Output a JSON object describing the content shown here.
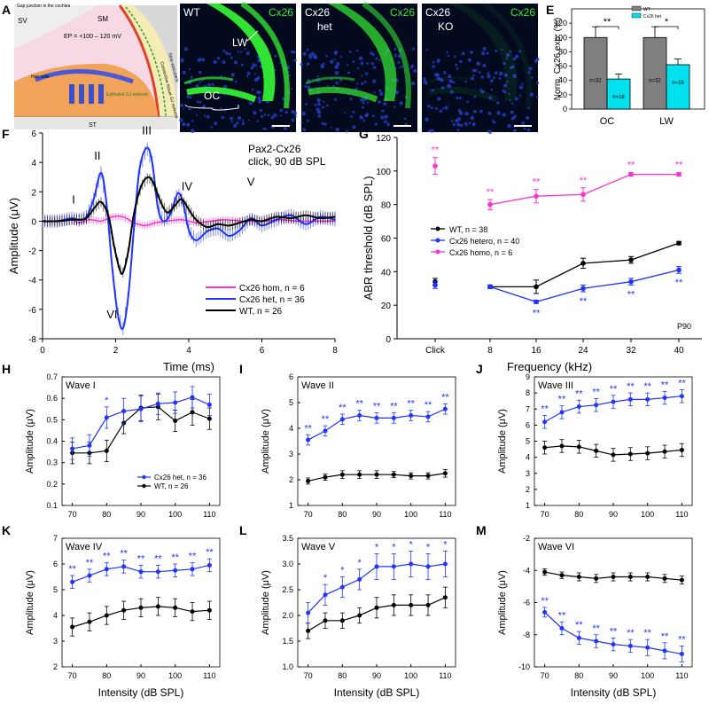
{
  "colors": {
    "blue": "#1f35ff",
    "black": "#000000",
    "magenta": "#ff33cc",
    "cyan": "#00e0ee",
    "grey": "#7f7f7f",
    "green": "#33ee33",
    "micro_bg": "#040a1e"
  },
  "panel_letters": [
    "A",
    "B",
    "C",
    "D",
    "E",
    "F",
    "G",
    "H",
    "I",
    "J",
    "K",
    "L",
    "M"
  ],
  "panelA": {
    "title": "Gap junction in the cochlea",
    "sv": "SV",
    "sm": "SM",
    "ep": "EP = +100 – 120 mV",
    "hair_cells": "Hair cells",
    "st": "ST",
    "stria": "Stria vascularis",
    "connective": "Connective tissue GJ network",
    "epithelial": "Epithelial GJ network"
  },
  "panelB": {
    "genotype": "WT",
    "stain": "Cx26",
    "lw": "LW",
    "oc": "OC"
  },
  "panelC": {
    "genotype": "Cx26",
    "genotype2": "het",
    "stain": "Cx26"
  },
  "panelD": {
    "genotype": "Cx26",
    "genotype2": "KO",
    "stain": "Cx26"
  },
  "panelE": {
    "chart_data": {
      "type": "bar",
      "ylabel": "Norm. Cx26 exp. (%)",
      "categories": [
        "OC",
        "LW"
      ],
      "series": [
        {
          "name": "WT",
          "values": [
            100,
            100
          ],
          "errors": [
            15,
            15
          ],
          "n_label": "n=32"
        },
        {
          "name": "Cx26 het",
          "values": [
            42,
            62
          ],
          "errors": [
            7,
            8
          ],
          "n_label": "n=18"
        }
      ],
      "ylim": [
        0,
        140
      ],
      "yticks": [
        0,
        20,
        40,
        60,
        80,
        100,
        120
      ],
      "significance": [
        "**",
        "*"
      ]
    }
  },
  "panelF": {
    "chart_data": {
      "type": "line",
      "title": "Pax2-Cx26",
      "subtitle": "click, 90 dB SPL",
      "xlabel": "Time (ms)",
      "ylabel": "Amplitude (μV)",
      "xlim": [
        0,
        8
      ],
      "ylim": [
        -8,
        6
      ],
      "xticks": [
        0,
        2,
        4,
        6,
        8
      ],
      "yticks": [
        -8,
        -6,
        -4,
        -2,
        0,
        2,
        4,
        6
      ],
      "wave_labels": [
        {
          "text": "I",
          "x": 0.85,
          "y": 1.2
        },
        {
          "text": "II",
          "x": 1.5,
          "y": 4.2
        },
        {
          "text": "III",
          "x": 2.85,
          "y": 5.9
        },
        {
          "text": "IV",
          "x": 3.95,
          "y": 2.1
        },
        {
          "text": "V",
          "x": 5.7,
          "y": 2.4
        },
        {
          "text": "VI",
          "x": 1.9,
          "y": -6.6
        }
      ],
      "legend": [
        "Cx26 hom, n = 6",
        "Cx26 het, n = 36",
        "WT, n = 26"
      ],
      "series": [
        {
          "name": "Cx26 het",
          "x": [
            0,
            0.4,
            0.8,
            1.0,
            1.2,
            1.4,
            1.6,
            1.75,
            1.9,
            2.05,
            2.2,
            2.35,
            2.5,
            2.65,
            2.85,
            3.0,
            3.15,
            3.3,
            3.5,
            3.7,
            3.85,
            4.0,
            4.2,
            4.5,
            4.8,
            5.1,
            5.4,
            5.7,
            6.0,
            6.4,
            6.8,
            7.2,
            7.6,
            8.0
          ],
          "y": [
            0,
            0,
            0.2,
            0.1,
            0.3,
            1.5,
            3.3,
            1.2,
            -3.0,
            -6.2,
            -7.3,
            -5.0,
            -0.5,
            3.5,
            5.0,
            4.0,
            1.0,
            0.0,
            0.5,
            1.9,
            1.2,
            -0.6,
            -1.3,
            -0.7,
            -0.5,
            -1.0,
            -0.6,
            0.2,
            -0.3,
            0.1,
            0.4,
            -0.2,
            0.3,
            0.1
          ]
        },
        {
          "name": "WT",
          "x": [
            0,
            0.4,
            0.8,
            1.0,
            1.2,
            1.45,
            1.6,
            1.8,
            1.95,
            2.1,
            2.2,
            2.35,
            2.5,
            2.7,
            2.9,
            3.05,
            3.2,
            3.4,
            3.6,
            3.8,
            4.0,
            4.2,
            4.5,
            4.8,
            5.1,
            5.4,
            5.7,
            6.0,
            6.4,
            6.8,
            7.2,
            7.6,
            8.0
          ],
          "y": [
            0,
            0,
            0.1,
            0.1,
            0.2,
            1.0,
            1.3,
            0.4,
            -1.6,
            -3.2,
            -3.5,
            -2.0,
            0.5,
            2.4,
            3.0,
            2.5,
            1.5,
            0.6,
            1.0,
            1.5,
            0.8,
            0.1,
            -0.4,
            -0.2,
            -0.3,
            -0.1,
            0.1,
            0.0,
            0.3,
            0.2,
            0.4,
            0.2,
            0.3
          ]
        },
        {
          "name": "Cx26 hom",
          "x": [
            0,
            0.5,
            0.8,
            1.0,
            1.3,
            1.6,
            1.9,
            2.2,
            2.5,
            2.8,
            3.1,
            3.4,
            3.8,
            4.2,
            4.6,
            5.0,
            5.5,
            6.0,
            6.5,
            7.0,
            7.5,
            8.0
          ],
          "y": [
            0,
            0,
            0.1,
            -0.1,
            0.1,
            0.0,
            0.3,
            0.3,
            -0.1,
            -0.3,
            -0.1,
            0.0,
            0.1,
            -0.1,
            0.0,
            0.1,
            0.0,
            0.0,
            0.1,
            0.0,
            0.0,
            0.0
          ]
        }
      ]
    }
  },
  "panelG": {
    "chart_data": {
      "type": "line",
      "xlabel": "Frequency (kHz)",
      "ylabel": "ABR threshold (dB SPL)",
      "categories": [
        "Click",
        "8",
        "16",
        "24",
        "32",
        "40"
      ],
      "ylim": [
        0,
        120
      ],
      "yticks": [
        0,
        20,
        40,
        60,
        80,
        100,
        120
      ],
      "legend": [
        "WT, n = 38",
        "Cx26 hetero, n = 40",
        "Cx26 homo, n = 6"
      ],
      "corner_label": "P90",
      "series": [
        {
          "name": "WT",
          "values": [
            34,
            31,
            31,
            45,
            47,
            57
          ],
          "errors": [
            2,
            1,
            4,
            3,
            2,
            1
          ]
        },
        {
          "name": "Cx26 hetero",
          "values": [
            32,
            31,
            22,
            30,
            34,
            41
          ],
          "errors": [
            2,
            1,
            1,
            2,
            2,
            2
          ],
          "sig": [
            "",
            "",
            "**",
            "**",
            "**",
            "**"
          ]
        },
        {
          "name": "Cx26 homo",
          "values": [
            103,
            80,
            85,
            86,
            98,
            98
          ],
          "errors": [
            5,
            3,
            4,
            4,
            1,
            1
          ],
          "sig": [
            "**",
            "**",
            "**",
            "**",
            "**",
            "**"
          ]
        }
      ]
    }
  },
  "waves": {
    "xlabel": "Intensity (dB SPL)",
    "ylabel": "Amplitude (μV)",
    "x": [
      70,
      75,
      80,
      85,
      90,
      95,
      100,
      105,
      110
    ],
    "xticks": [
      70,
      80,
      90,
      100,
      110
    ],
    "legend": [
      "Cx26 het, n = 36",
      "WT, n = 26"
    ],
    "panels": [
      {
        "letter": "H",
        "title": "Wave I",
        "ylim": [
          0.1,
          0.7
        ],
        "yticks": [
          0.1,
          0.2,
          0.3,
          0.4,
          0.5,
          0.6,
          0.7
        ],
        "het": [
          0.365,
          0.38,
          0.51,
          0.54,
          0.55,
          0.575,
          0.58,
          0.605,
          0.57
        ],
        "het_err": [
          0.05,
          0.05,
          0.05,
          0.06,
          0.06,
          0.05,
          0.05,
          0.05,
          0.05
        ],
        "wt": [
          0.345,
          0.345,
          0.355,
          0.485,
          0.555,
          0.56,
          0.495,
          0.535,
          0.505
        ],
        "wt_err": [
          0.05,
          0.05,
          0.05,
          0.05,
          0.06,
          0.06,
          0.05,
          0.06,
          0.05
        ],
        "sig": [
          "",
          "",
          "*",
          "",
          "",
          "",
          "",
          "",
          ""
        ]
      },
      {
        "letter": "I",
        "title": "Wave II",
        "ylim": [
          1,
          6
        ],
        "yticks": [
          1,
          2,
          3,
          4,
          5,
          6
        ],
        "het": [
          3.55,
          3.9,
          4.35,
          4.5,
          4.4,
          4.4,
          4.5,
          4.45,
          4.75
        ],
        "het_err": [
          0.2,
          0.2,
          0.2,
          0.2,
          0.2,
          0.2,
          0.2,
          0.2,
          0.2
        ],
        "wt": [
          1.95,
          2.1,
          2.2,
          2.2,
          2.2,
          2.2,
          2.15,
          2.15,
          2.25
        ],
        "wt_err": [
          0.12,
          0.12,
          0.15,
          0.15,
          0.15,
          0.12,
          0.12,
          0.12,
          0.15
        ],
        "sig": [
          "**",
          "**",
          "**",
          "**",
          "**",
          "**",
          "**",
          "**",
          "**"
        ]
      },
      {
        "letter": "J",
        "title": "Wave III",
        "ylim": [
          1,
          9
        ],
        "yticks": [
          1,
          2,
          3,
          4,
          5,
          6,
          7,
          8,
          9
        ],
        "het": [
          6.2,
          6.8,
          7.15,
          7.25,
          7.45,
          7.6,
          7.6,
          7.7,
          7.8
        ],
        "het_err": [
          0.4,
          0.4,
          0.4,
          0.4,
          0.4,
          0.4,
          0.4,
          0.4,
          0.4
        ],
        "wt": [
          4.6,
          4.7,
          4.65,
          4.4,
          4.15,
          4.2,
          4.25,
          4.35,
          4.45
        ],
        "wt_err": [
          0.4,
          0.4,
          0.4,
          0.4,
          0.4,
          0.4,
          0.4,
          0.4,
          0.4
        ],
        "sig": [
          "**",
          "**",
          "**",
          "**",
          "**",
          "**",
          "**",
          "**",
          "**"
        ]
      },
      {
        "letter": "K",
        "title": "Wave IV",
        "ylim": [
          2,
          7
        ],
        "yticks": [
          2,
          3,
          4,
          5,
          6,
          7
        ],
        "het": [
          5.3,
          5.55,
          5.8,
          5.9,
          5.7,
          5.7,
          5.75,
          5.8,
          5.95
        ],
        "het_err": [
          0.25,
          0.25,
          0.25,
          0.25,
          0.25,
          0.25,
          0.25,
          0.25,
          0.25
        ],
        "wt": [
          3.55,
          3.75,
          4.0,
          4.2,
          4.3,
          4.35,
          4.3,
          4.15,
          4.2
        ],
        "wt_err": [
          0.35,
          0.35,
          0.35,
          0.35,
          0.35,
          0.35,
          0.35,
          0.35,
          0.35
        ],
        "sig": [
          "**",
          "**",
          "**",
          "**",
          "**",
          "**",
          "**",
          "**",
          "**"
        ]
      },
      {
        "letter": "L",
        "title": "Wave V",
        "ylim": [
          1,
          3.5
        ],
        "yticks": [
          1.0,
          1.5,
          2.0,
          2.5,
          3.0,
          3.5
        ],
        "het": [
          2.05,
          2.4,
          2.55,
          2.7,
          2.95,
          2.95,
          3.0,
          2.95,
          3.0
        ],
        "het_err": [
          0.2,
          0.2,
          0.2,
          0.2,
          0.25,
          0.25,
          0.25,
          0.25,
          0.25
        ],
        "wt": [
          1.7,
          1.9,
          1.9,
          2.0,
          2.15,
          2.2,
          2.2,
          2.2,
          2.35
        ],
        "wt_err": [
          0.15,
          0.15,
          0.15,
          0.15,
          0.2,
          0.2,
          0.2,
          0.2,
          0.2
        ],
        "sig": [
          "",
          "*",
          "*",
          "*",
          "*",
          "*",
          "*",
          "*",
          "*"
        ]
      },
      {
        "letter": "M",
        "title": "Wave VI",
        "ylim": [
          -10,
          -2
        ],
        "yticks": [
          -10,
          -8,
          -6,
          -4,
          -2
        ],
        "het": [
          -6.6,
          -7.6,
          -8.2,
          -8.4,
          -8.6,
          -8.7,
          -8.8,
          -9.0,
          -9.2
        ],
        "het_err": [
          0.3,
          0.4,
          0.4,
          0.4,
          0.4,
          0.4,
          0.5,
          0.5,
          0.5
        ],
        "wt": [
          -4.1,
          -4.3,
          -4.4,
          -4.5,
          -4.4,
          -4.4,
          -4.4,
          -4.5,
          -4.6
        ],
        "wt_err": [
          0.2,
          0.2,
          0.25,
          0.25,
          0.25,
          0.25,
          0.25,
          0.25,
          0.25
        ],
        "sig": [
          "**",
          "**",
          "**",
          "**",
          "**",
          "**",
          "**",
          "**",
          "**"
        ]
      }
    ]
  }
}
